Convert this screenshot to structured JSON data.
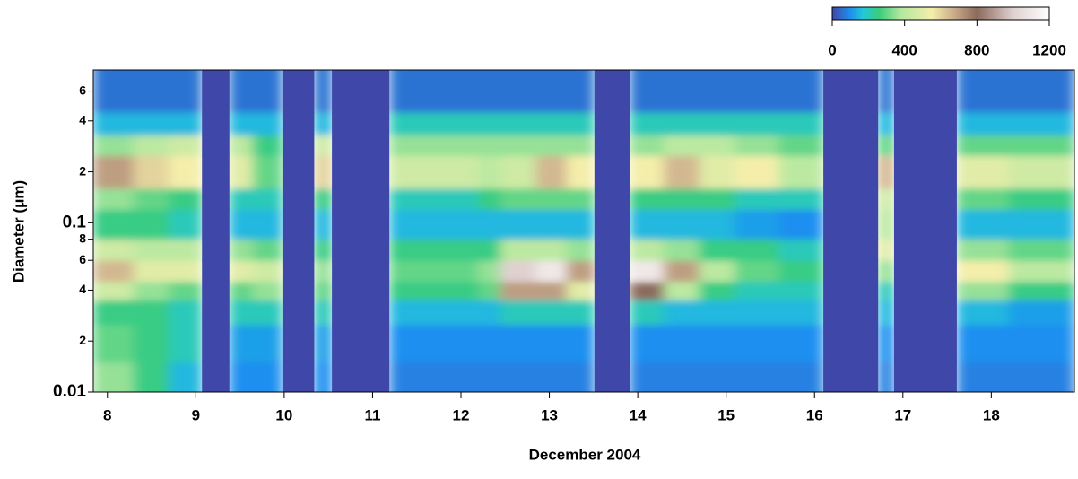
{
  "chart_data": {
    "type": "heatmap",
    "xlabel": "December 2004",
    "ylabel": "Diameter (μm)",
    "xlim": [
      7.84,
      18.94
    ],
    "ylim": [
      0.01,
      0.8
    ],
    "log_y": true,
    "xticks": [
      8,
      9,
      10,
      11,
      12,
      13,
      14,
      15,
      16,
      17,
      18
    ],
    "yticks": [
      0.01,
      {
        "value": 0.02,
        "label": "2"
      },
      {
        "value": 0.04,
        "label": "4"
      },
      {
        "value": 0.06,
        "label": "6"
      },
      {
        "value": 0.08,
        "label": "8"
      },
      0.1,
      {
        "value": 0.2,
        "label": "2"
      },
      {
        "value": 0.4,
        "label": "4"
      },
      {
        "value": 0.6,
        "label": "6"
      }
    ],
    "x_edges": [
      7.84,
      8.3,
      8.7,
      9.07,
      9.38,
      9.65,
      9.98,
      10.34,
      10.54,
      11.19,
      11.7,
      12.2,
      12.45,
      12.85,
      13.2,
      13.51,
      13.91,
      14.3,
      14.7,
      15.1,
      15.6,
      16.1,
      16.72,
      16.9,
      17.61,
      18.2,
      18.94
    ],
    "y_edges": [
      0.01,
      0.015,
      0.025,
      0.035,
      0.045,
      0.06,
      0.08,
      0.12,
      0.16,
      0.25,
      0.33,
      0.45,
      0.8
    ],
    "z": [
      [
        350,
        250,
        150,
        null,
        100,
        100,
        null,
        100,
        null,
        80,
        80,
        80,
        80,
        80,
        80,
        null,
        80,
        80,
        80,
        80,
        80,
        null,
        80,
        null,
        80,
        80
      ],
      [
        300,
        250,
        200,
        null,
        120,
        120,
        null,
        120,
        null,
        100,
        100,
        100,
        100,
        100,
        100,
        null,
        100,
        100,
        100,
        100,
        100,
        null,
        100,
        null,
        100,
        100
      ],
      [
        250,
        250,
        200,
        null,
        200,
        200,
        null,
        200,
        null,
        150,
        150,
        150,
        200,
        200,
        200,
        null,
        200,
        150,
        150,
        150,
        150,
        null,
        150,
        null,
        150,
        120
      ],
      [
        450,
        350,
        300,
        null,
        300,
        350,
        null,
        300,
        null,
        250,
        250,
        300,
        700,
        700,
        500,
        null,
        800,
        400,
        250,
        200,
        200,
        null,
        200,
        null,
        350,
        250
      ],
      [
        650,
        500,
        500,
        null,
        500,
        450,
        null,
        350,
        null,
        300,
        300,
        350,
        1000,
        1100,
        700,
        null,
        1100,
        700,
        400,
        300,
        250,
        null,
        350,
        null,
        550,
        400
      ],
      [
        450,
        400,
        400,
        null,
        350,
        300,
        null,
        250,
        null,
        250,
        250,
        250,
        400,
        400,
        350,
        null,
        400,
        350,
        250,
        250,
        200,
        null,
        500,
        null,
        350,
        300
      ],
      [
        250,
        250,
        200,
        null,
        150,
        150,
        null,
        150,
        null,
        150,
        150,
        150,
        150,
        150,
        150,
        null,
        150,
        150,
        150,
        120,
        100,
        null,
        400,
        null,
        150,
        150
      ],
      [
        350,
        300,
        250,
        null,
        200,
        200,
        null,
        250,
        null,
        200,
        200,
        250,
        300,
        300,
        300,
        null,
        250,
        250,
        250,
        200,
        200,
        null,
        450,
        null,
        300,
        250
      ],
      [
        700,
        600,
        550,
        null,
        500,
        300,
        null,
        600,
        null,
        450,
        450,
        400,
        450,
        650,
        550,
        null,
        550,
        650,
        500,
        550,
        400,
        null,
        650,
        null,
        500,
        450
      ],
      [
        350,
        400,
        450,
        null,
        400,
        250,
        null,
        450,
        null,
        350,
        350,
        350,
        350,
        350,
        350,
        null,
        350,
        400,
        400,
        350,
        300,
        null,
        300,
        null,
        300,
        300
      ],
      [
        150,
        150,
        150,
        null,
        150,
        150,
        null,
        150,
        null,
        200,
        200,
        200,
        200,
        200,
        200,
        null,
        200,
        200,
        200,
        200,
        200,
        null,
        150,
        null,
        150,
        150
      ],
      [
        60,
        60,
        60,
        null,
        60,
        60,
        null,
        60,
        null,
        60,
        60,
        60,
        60,
        60,
        60,
        null,
        60,
        60,
        60,
        60,
        60,
        null,
        60,
        null,
        60,
        60
      ]
    ],
    "colorscale": [
      [
        0,
        "#3f48a8"
      ],
      [
        100,
        "#1e8ff0"
      ],
      [
        170,
        "#22c8d8"
      ],
      [
        260,
        "#3ccc7a"
      ],
      [
        380,
        "#b4e8a0"
      ],
      [
        550,
        "#f4eeaa"
      ],
      [
        680,
        "#c8a888"
      ],
      [
        800,
        "#8c6a5c"
      ],
      [
        1000,
        "#e0d0d0"
      ],
      [
        1200,
        "#ffffff"
      ]
    ],
    "missing_color": "#3f48a8",
    "colorbar": {
      "lim": [
        0,
        1200
      ],
      "ticks": [
        0,
        400,
        800,
        1200
      ]
    }
  }
}
